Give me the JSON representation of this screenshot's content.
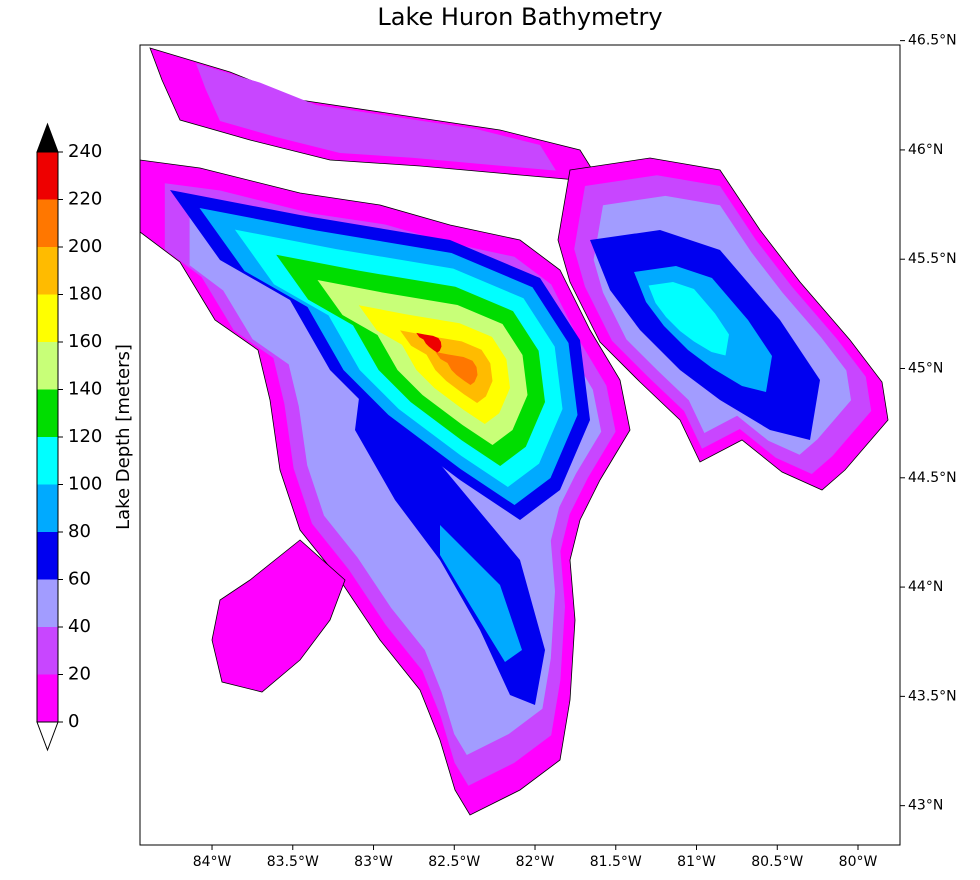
{
  "chart_data": {
    "type": "contour_map",
    "title": "Lake Huron Bathymetry",
    "colorbar_label": "Lake Depth [meters]",
    "levels": [
      0,
      20,
      40,
      60,
      80,
      100,
      120,
      140,
      160,
      180,
      200,
      220,
      240
    ],
    "colors": [
      "#ff00ff",
      "#c846ff",
      "#a29cff",
      "#0000f0",
      "#00aaff",
      "#00ffff",
      "#00dd00",
      "#c8ff78",
      "#ffff00",
      "#ffbb00",
      "#ff7700",
      "#ee0000"
    ],
    "under_color": "#ffffff",
    "over_color": "#000000",
    "xlim": [
      -84.446,
      -79.74
    ],
    "ylim": [
      42.82,
      46.48
    ],
    "xticks": [
      {
        "value": -84,
        "label": "84°W"
      },
      {
        "value": -83.5,
        "label": "83.5°W"
      },
      {
        "value": -83,
        "label": "83°W"
      },
      {
        "value": -82.5,
        "label": "82.5°W"
      },
      {
        "value": -82,
        "label": "82°W"
      },
      {
        "value": -81.5,
        "label": "81.5°W"
      },
      {
        "value": -81,
        "label": "81°W"
      },
      {
        "value": -80.5,
        "label": "80.5°W"
      },
      {
        "value": -80,
        "label": "80°W"
      }
    ],
    "yticks": [
      {
        "value": 43,
        "label": "43°N"
      },
      {
        "value": 43.5,
        "label": "43.5°N"
      },
      {
        "value": 44,
        "label": "44°N"
      },
      {
        "value": 44.5,
        "label": "44.5°N"
      },
      {
        "value": 45,
        "label": "45°N"
      },
      {
        "value": 45.5,
        "label": "45.5°N"
      },
      {
        "value": 46,
        "label": "46°N"
      },
      {
        "value": 46.5,
        "label": "46.5°N"
      }
    ]
  }
}
